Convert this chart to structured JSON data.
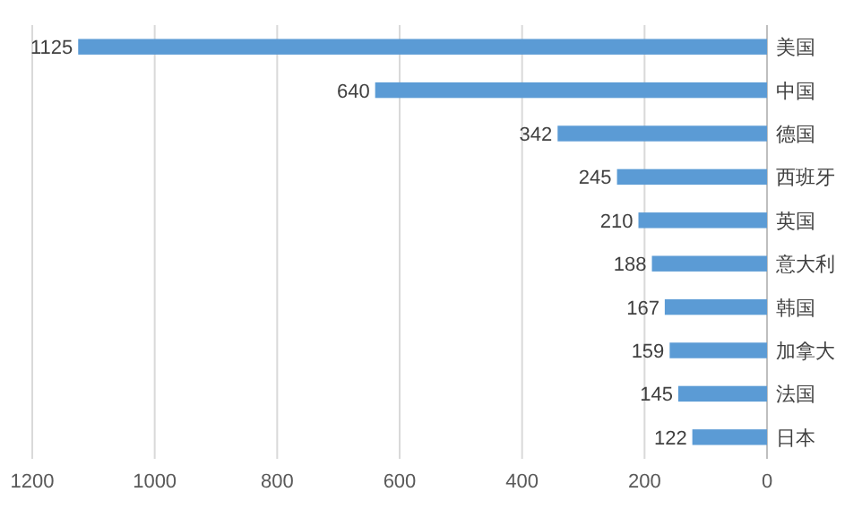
{
  "chart_data": {
    "type": "bar",
    "orientation": "horizontal",
    "categories": [
      "美国",
      "中国",
      "德国",
      "西班牙",
      "英国",
      "意大利",
      "韩国",
      "加拿大",
      "法国",
      "日本"
    ],
    "values": [
      1125,
      640,
      342,
      245,
      210,
      188,
      167,
      159,
      145,
      122
    ],
    "color": "#5b9bd5",
    "xlim": [
      1200,
      0
    ],
    "xticks": [
      0,
      200,
      400,
      600,
      800,
      1000,
      1200
    ],
    "grid": "x",
    "data_labels": true
  }
}
